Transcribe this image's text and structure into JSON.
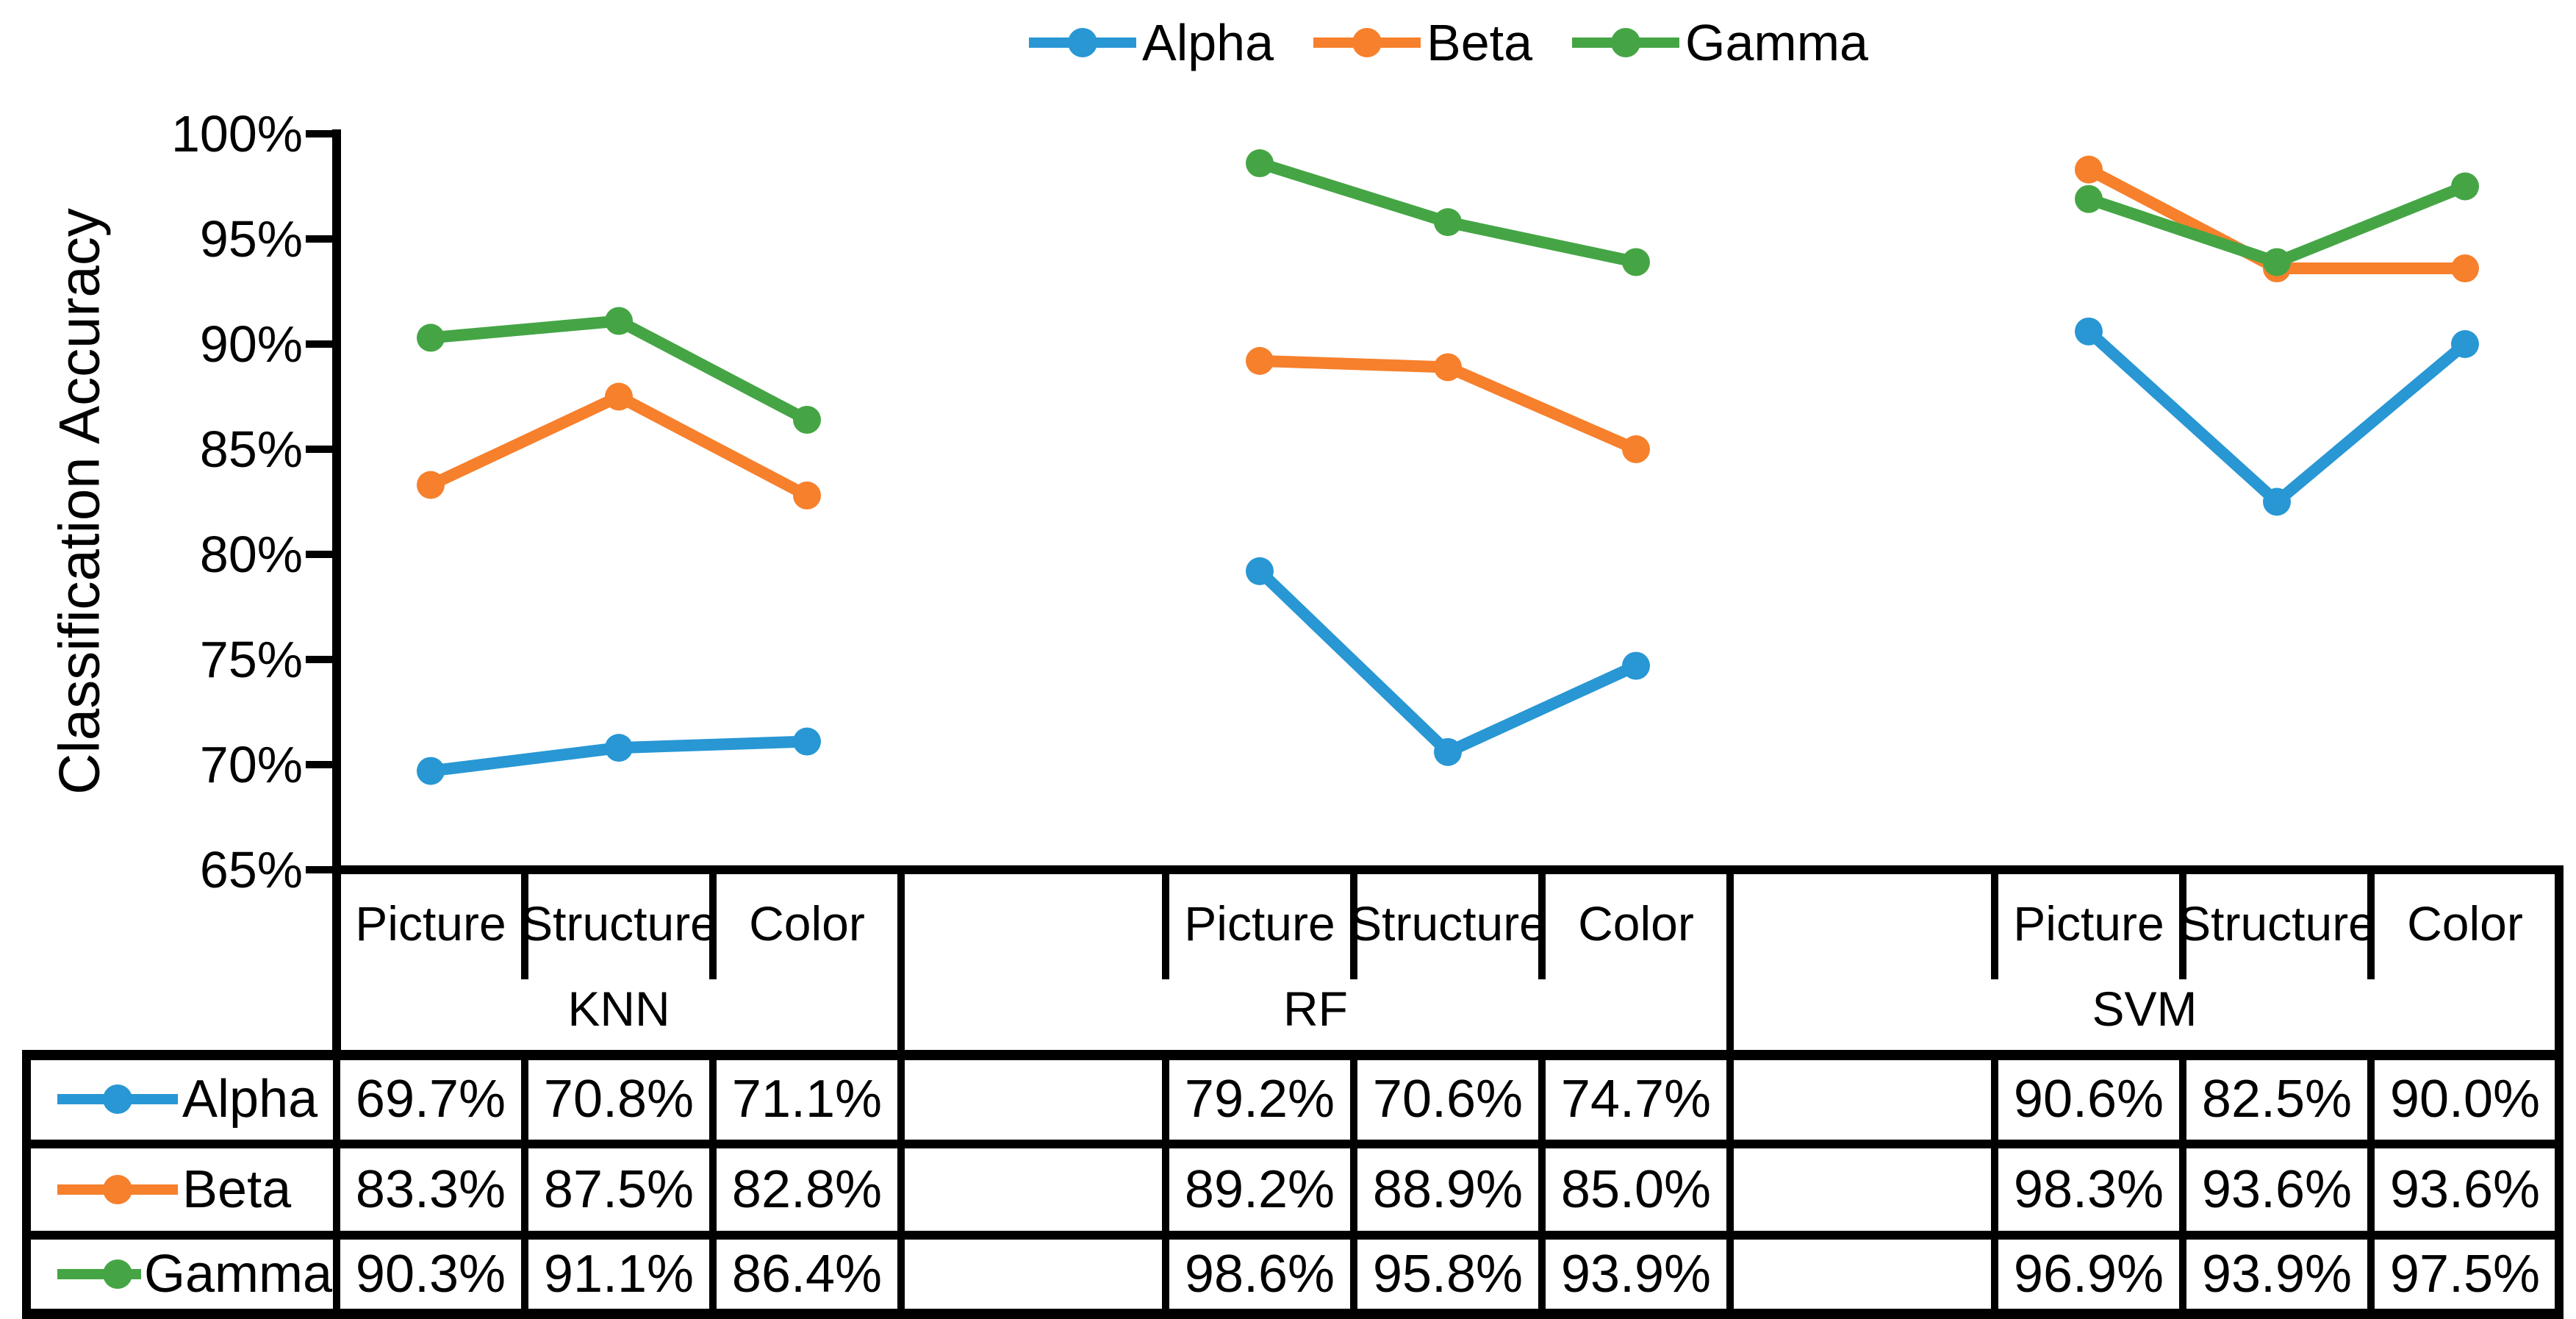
{
  "chart_data": {
    "type": "line",
    "title": "",
    "ylabel": "Classification Accuracy",
    "ylim": [
      65,
      100
    ],
    "ytick_step": 5,
    "yticks": [
      65,
      70,
      75,
      80,
      85,
      90,
      95,
      100
    ],
    "ytick_suffix": "%",
    "grid": false,
    "legend_position": "top",
    "marker": "circle",
    "axis_color": "#000000",
    "groups": [
      {
        "label": "KNN",
        "categories": [
          "Picture",
          "Structure",
          "Color"
        ]
      },
      {
        "label": "RF",
        "categories": [
          "Picture",
          "Structure",
          "Color"
        ]
      },
      {
        "label": "SVM",
        "categories": [
          "Picture",
          "Structure",
          "Color"
        ]
      }
    ],
    "series": [
      {
        "name": "Alpha",
        "color": "#2897D4",
        "values": [
          [
            69.7,
            70.8,
            71.1
          ],
          [
            79.2,
            70.6,
            74.7
          ],
          [
            90.6,
            82.5,
            90.0
          ]
        ]
      },
      {
        "name": "Beta",
        "color": "#F6802C",
        "values": [
          [
            83.3,
            87.5,
            82.8
          ],
          [
            89.2,
            88.9,
            85.0
          ],
          [
            98.3,
            93.6,
            93.6
          ]
        ]
      },
      {
        "name": "Gamma",
        "color": "#45A545",
        "values": [
          [
            90.3,
            91.1,
            86.4
          ],
          [
            98.6,
            95.8,
            93.9
          ],
          [
            96.9,
            93.9,
            97.5
          ]
        ]
      }
    ],
    "value_format": "one_decimal_percent",
    "table_shows_legend_keys": true
  }
}
